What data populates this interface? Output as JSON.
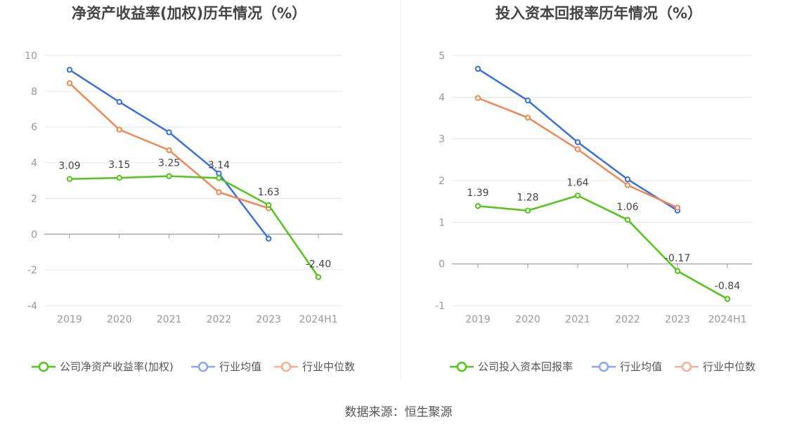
{
  "footer": {
    "source": "数据来源：恒生聚源"
  },
  "chart_data": [
    {
      "type": "line",
      "title": "净资产收益率(加权)历年情况（%）",
      "categories": [
        "2019",
        "2020",
        "2021",
        "2022",
        "2023",
        "2024H1"
      ],
      "ylim": [
        -4,
        10
      ],
      "yticks": [
        "10",
        "8",
        "6",
        "4",
        "2",
        "0",
        "-2",
        "-4"
      ],
      "grid": true,
      "legend_position": "bottom",
      "series": [
        {
          "name": "公司净资产收益率(加权)",
          "color": "#52c41a",
          "values": [
            3.09,
            3.15,
            3.25,
            3.14,
            1.63,
            -2.4
          ],
          "labels": [
            "3.09",
            "3.15",
            "3.25",
            "3.14",
            "1.63",
            "-2.40"
          ]
        },
        {
          "name": "行业均值",
          "color": "#3a6fe0",
          "values": [
            9.2,
            7.4,
            5.7,
            3.4,
            -0.25,
            null
          ]
        },
        {
          "name": "行业中位数",
          "color": "#f08757",
          "values": [
            8.45,
            5.85,
            4.7,
            2.35,
            1.45,
            null
          ]
        }
      ]
    },
    {
      "type": "line",
      "title": "投入资本回报率历年情况（%）",
      "categories": [
        "2019",
        "2020",
        "2021",
        "2022",
        "2023",
        "2024H1"
      ],
      "ylim": [
        -1,
        5
      ],
      "yticks": [
        "5",
        "4",
        "3",
        "2",
        "1",
        "0",
        "-1"
      ],
      "grid": true,
      "legend_position": "bottom",
      "series": [
        {
          "name": "公司投入资本回报率",
          "color": "#52c41a",
          "values": [
            1.39,
            1.28,
            1.64,
            1.06,
            -0.17,
            -0.84
          ],
          "labels": [
            "1.39",
            "1.28",
            "1.64",
            "1.06",
            "-0.17",
            "-0.84"
          ]
        },
        {
          "name": "行业均值",
          "color": "#3a6fe0",
          "values": [
            4.68,
            3.92,
            2.92,
            2.03,
            1.28,
            null
          ]
        },
        {
          "name": "行业中位数",
          "color": "#f08757",
          "values": [
            3.98,
            3.51,
            2.75,
            1.89,
            1.35,
            null
          ]
        }
      ]
    }
  ]
}
